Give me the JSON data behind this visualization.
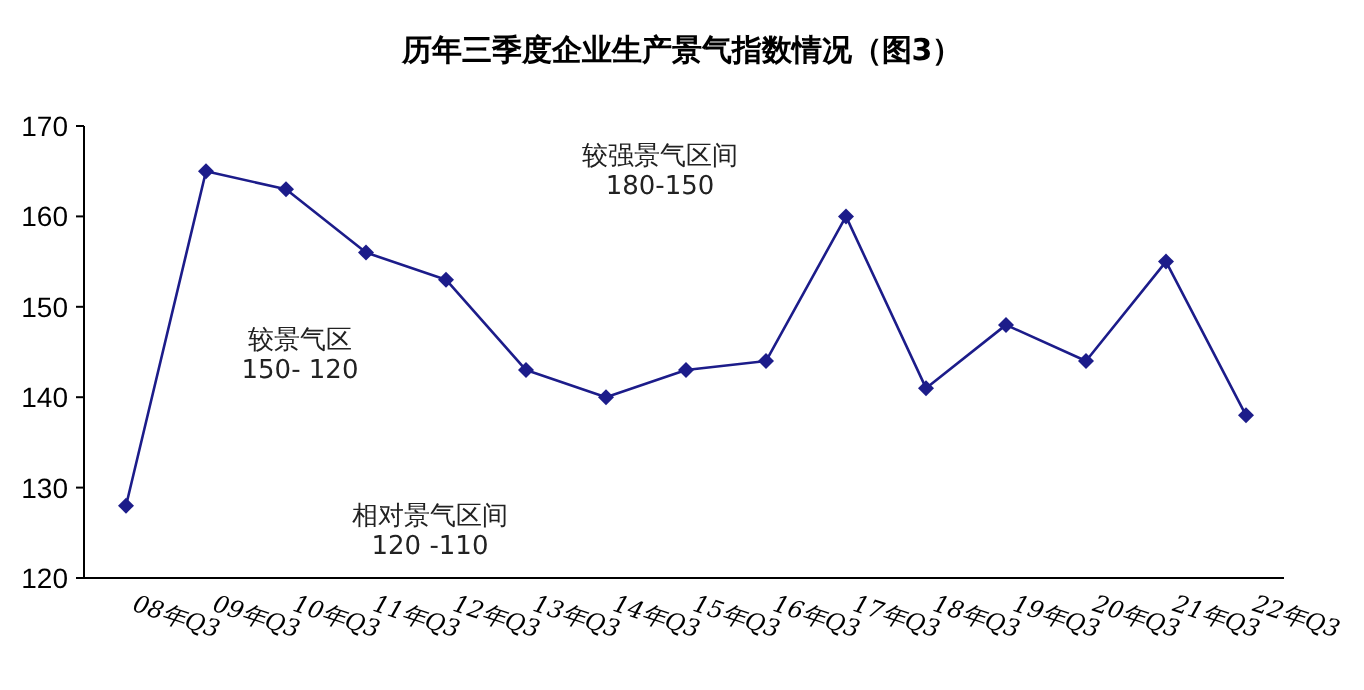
{
  "chart_data": {
    "type": "line",
    "title": "历年三季度企业生产景气指数情况（图3）",
    "categories": [
      "08年Q3",
      "09年Q3",
      "10年Q3",
      "11年Q3",
      "12年Q3",
      "13年Q3",
      "14年Q3",
      "15年Q3",
      "16年Q3",
      "17年Q3",
      "18年Q3",
      "19年Q3",
      "20年Q3",
      "21年Q3",
      "22年Q3"
    ],
    "series": [
      {
        "color": "#1c1c8a",
        "values": [
          128,
          165,
          163,
          156,
          153,
          143,
          140,
          143,
          144,
          160,
          141,
          148,
          144,
          155,
          138
        ]
      }
    ],
    "ylim": [
      120,
      170
    ],
    "yticks": [
      120,
      130,
      140,
      150,
      160,
      170
    ],
    "marker": "diamond",
    "line_style": "solid",
    "annotations": [
      "较强景气区间",
      "180-150",
      "较景气区",
      "150- 120",
      "相对景气区间",
      "120 -110"
    ]
  }
}
